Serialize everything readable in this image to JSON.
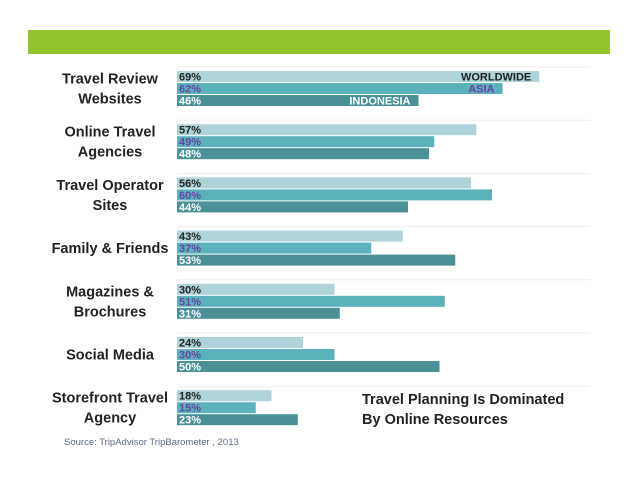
{
  "chart_data": {
    "type": "bar",
    "orientation": "horizontal",
    "categories": [
      [
        "Travel Review",
        "Websites"
      ],
      [
        "Online Travel",
        "Agencies"
      ],
      [
        "Travel Operator",
        "Sites"
      ],
      [
        "Family & Friends"
      ],
      [
        "Magazines &",
        "Brochures"
      ],
      [
        "Social Media"
      ],
      [
        "Storefront Travel",
        "Agency"
      ]
    ],
    "series": [
      {
        "name": "WORLDWIDE",
        "color": "#aed3d8",
        "label_color": "#222222",
        "values": [
          69,
          57,
          56,
          43,
          30,
          24,
          18
        ],
        "labels": [
          "69%",
          "57%",
          "56%",
          "43%",
          "30%",
          "24%",
          "18%"
        ]
      },
      {
        "name": "ASIA",
        "color": "#5bb2bc",
        "label_color": "#6a42a6",
        "values": [
          62,
          49,
          60,
          37,
          51,
          30,
          15
        ],
        "labels": [
          "62%",
          "49%",
          "60%",
          "37%",
          "51%",
          "30%",
          "15%"
        ]
      },
      {
        "name": "INDONESIA",
        "color": "#4a9096",
        "label_color": "#ffffff",
        "values": [
          46,
          48,
          44,
          53,
          31,
          50,
          23
        ],
        "labels": [
          "46%",
          "48%",
          "44%",
          "53%",
          "31%",
          "50%",
          "23%"
        ]
      }
    ],
    "xlim": [
      0,
      100
    ],
    "grid": false,
    "legend": "inline-first-group",
    "annotation": [
      "Travel Planning Is Dominated",
      "By Online Resources"
    ],
    "source": "Source: TripAdvisor TripBarometer , 2013"
  }
}
